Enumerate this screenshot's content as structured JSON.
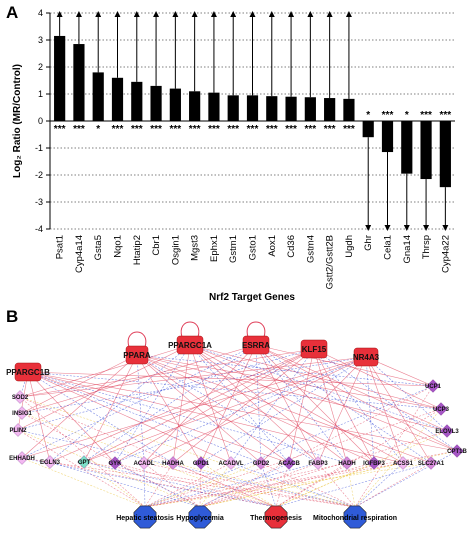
{
  "panels": {
    "a_label": "A",
    "b_label": "B"
  },
  "chart_data": {
    "type": "bar",
    "title": "",
    "xlabel": "Nrf2 Target Genes",
    "ylabel": "Log₂ Ratio (MR/Control)",
    "ylim": [
      -4,
      4
    ],
    "yticks": [
      -4,
      -3,
      -2,
      -1,
      0,
      1,
      2,
      3,
      4
    ],
    "grid": "dotted-horizontal",
    "bar_color": "#000000",
    "categories": [
      "Psat1",
      "Cyp4a14",
      "Gsta5",
      "Nqo1",
      "Htatip2",
      "Cbr1",
      "Osgin1",
      "Mgst3",
      "Ephx1",
      "Gstm1",
      "Gsto1",
      "Aox1",
      "Cd36",
      "Gstm4",
      "Gstt2/Gstt2B",
      "Ugdh",
      "Ghr",
      "Cela1",
      "Gna14",
      "Thrsp",
      "Cyp4a22"
    ],
    "values": [
      3.15,
      2.85,
      1.8,
      1.6,
      1.45,
      1.3,
      1.2,
      1.1,
      1.05,
      0.95,
      0.95,
      0.92,
      0.9,
      0.88,
      0.85,
      0.82,
      -0.6,
      -1.15,
      -1.95,
      -2.15,
      -2.45
    ],
    "significance": [
      "***",
      "***",
      "*",
      "***",
      "***",
      "***",
      "***",
      "***",
      "***",
      "***",
      "***",
      "***",
      "***",
      "***",
      "***",
      "***",
      "*",
      "***",
      "*",
      "***",
      "***"
    ]
  },
  "network": {
    "hubs": [
      {
        "label": "PPARGC1B",
        "color": "#e8303a"
      },
      {
        "label": "PPARA",
        "color": "#e8303a"
      },
      {
        "label": "PPARGC1A",
        "color": "#e8303a"
      },
      {
        "label": "ESRRA",
        "color": "#e8303a"
      },
      {
        "label": "KLF15",
        "color": "#e8303a"
      },
      {
        "label": "NR4A3",
        "color": "#e8303a"
      }
    ],
    "left_genes": [
      "SOD2",
      "INSIG1",
      "PLIN2",
      "EHHADH",
      "EGLN3"
    ],
    "right_genes": [
      "UCP1",
      "UCP3",
      "ELOVL3",
      "CPT1B"
    ],
    "middle_genes": [
      "GPT",
      "GYK",
      "ACADL",
      "HADHA",
      "GPD1",
      "ACADVL",
      "GPD2",
      "ACACB",
      "FABP3",
      "HADH",
      "IGFBP3",
      "ACSS1",
      "SLC27A1"
    ],
    "outcomes": [
      {
        "label": "Hepatic steatosis",
        "color": "#2f5bd8"
      },
      {
        "label": "Hypoglycemia",
        "color": "#2f5bd8"
      },
      {
        "label": "Thermogenesis",
        "color": "#e8303a"
      },
      {
        "label": "Mitochondrial respiration",
        "color": "#2f5bd8"
      }
    ],
    "colors": {
      "gene_light": "#f2b8f0",
      "gene_mid": "#d58ad9",
      "gene_dark": "#a556c4",
      "gene_teal": "#7ee0c8",
      "edge_red": "#e0405a",
      "edge_blue": "#3a4fd8",
      "edge_yellow": "#e8c030"
    }
  }
}
